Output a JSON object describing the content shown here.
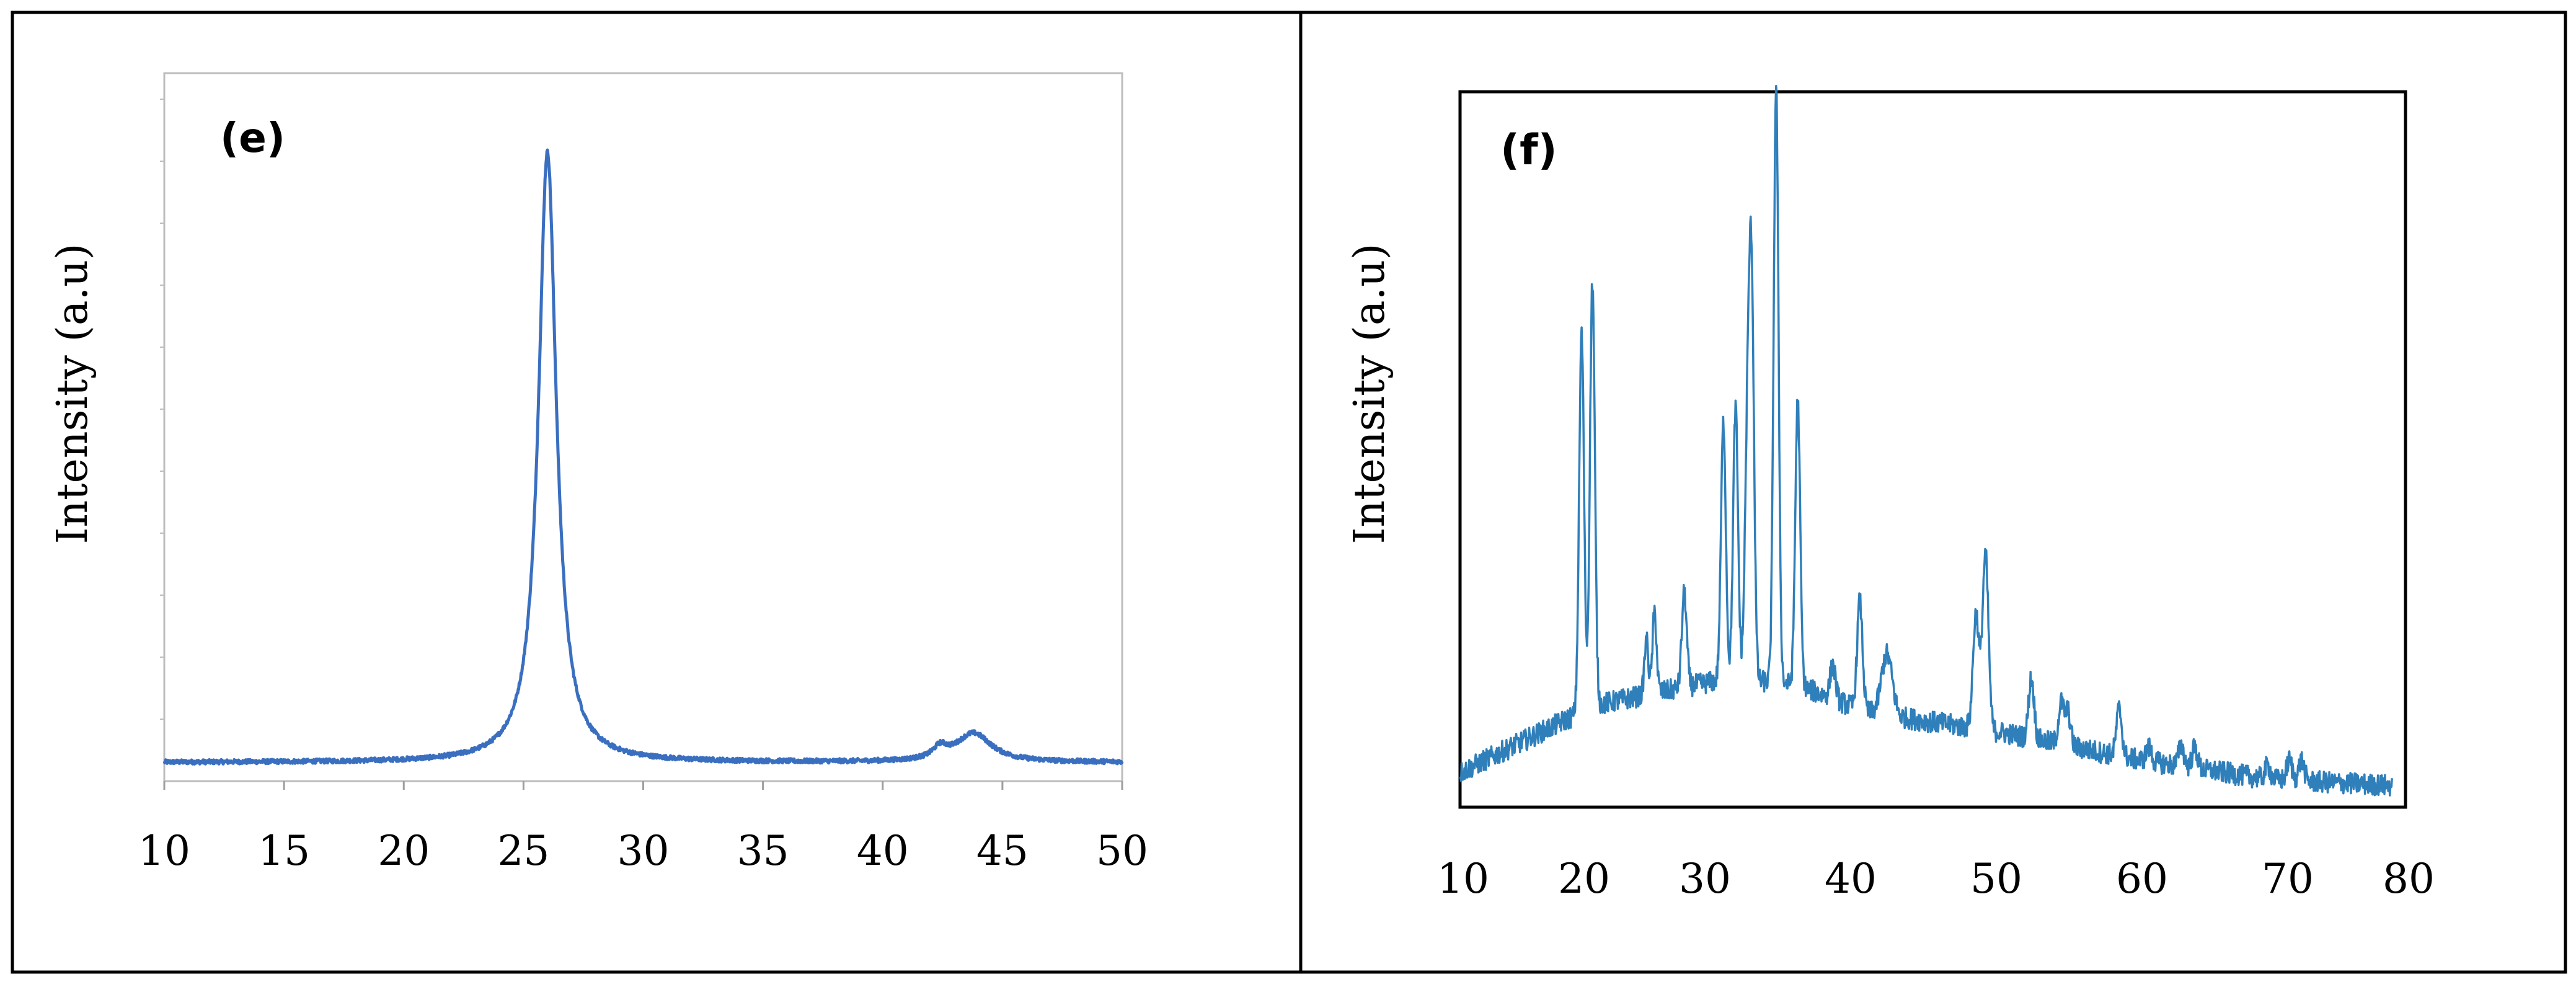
{
  "chart_data": [
    {
      "type": "line",
      "panel_label": "(e)",
      "title": "",
      "xlabel": "",
      "ylabel": "Intensity (a.u)",
      "xlim": [
        10,
        50
      ],
      "ylim": [
        0,
        100
      ],
      "x_ticks": [
        10,
        15,
        20,
        25,
        30,
        35,
        40,
        45,
        50
      ],
      "x_tick_labels": [
        "10",
        "15",
        "20",
        "25",
        "30",
        "35",
        "40",
        "45",
        "50"
      ],
      "color": "#3a6fc0",
      "baseline": 1.5,
      "noise": 0.35,
      "peaks": [
        {
          "x": 26.0,
          "height": 98,
          "width": 0.45,
          "shape": "lorentz"
        },
        {
          "x": 42.4,
          "height": 1.8,
          "width": 0.35,
          "shape": "lorentz"
        },
        {
          "x": 43.8,
          "height": 4.6,
          "width": 0.9,
          "shape": "lorentz"
        }
      ]
    },
    {
      "type": "line",
      "panel_label": "(f)",
      "title": "",
      "xlabel": "",
      "ylabel": "Intensity (a.u)",
      "xlim": [
        10,
        80
      ],
      "ylim": [
        0,
        100
      ],
      "x_ticks": [
        10,
        20,
        30,
        40,
        50,
        60,
        70,
        80
      ],
      "x_tick_labels": [
        "10",
        "20",
        "30",
        "40",
        "50",
        "60",
        "70",
        "80"
      ],
      "color": "#2f7fba",
      "noise": 1.6,
      "background": [
        [
          10,
          4
        ],
        [
          20,
          14
        ],
        [
          30,
          18
        ],
        [
          35,
          17
        ],
        [
          40,
          13
        ],
        [
          50,
          10
        ],
        [
          60,
          6
        ],
        [
          70,
          3
        ],
        [
          80,
          2
        ]
      ],
      "peaks": [
        {
          "x": 19.0,
          "height": 56,
          "width": 0.18
        },
        {
          "x": 19.8,
          "height": 63,
          "width": 0.18
        },
        {
          "x": 23.8,
          "height": 8,
          "width": 0.15
        },
        {
          "x": 24.4,
          "height": 12,
          "width": 0.15
        },
        {
          "x": 26.6,
          "height": 14,
          "width": 0.18
        },
        {
          "x": 29.5,
          "height": 38,
          "width": 0.18
        },
        {
          "x": 30.4,
          "height": 40,
          "width": 0.18
        },
        {
          "x": 31.3,
          "height": 37,
          "width": 0.2
        },
        {
          "x": 31.6,
          "height": 52,
          "width": 0.18
        },
        {
          "x": 33.4,
          "height": 88,
          "width": 0.18
        },
        {
          "x": 35.0,
          "height": 42,
          "width": 0.18
        },
        {
          "x": 37.6,
          "height": 5,
          "width": 0.2
        },
        {
          "x": 39.6,
          "height": 16,
          "width": 0.2
        },
        {
          "x": 41.6,
          "height": 9,
          "width": 0.4
        },
        {
          "x": 48.2,
          "height": 17,
          "width": 0.22
        },
        {
          "x": 48.9,
          "height": 26,
          "width": 0.22
        },
        {
          "x": 52.3,
          "height": 9,
          "width": 0.2
        },
        {
          "x": 54.5,
          "height": 6,
          "width": 0.2
        },
        {
          "x": 55.0,
          "height": 5,
          "width": 0.2
        },
        {
          "x": 58.8,
          "height": 7,
          "width": 0.2
        },
        {
          "x": 61.0,
          "height": 2,
          "width": 0.2
        },
        {
          "x": 63.4,
          "height": 3,
          "width": 0.2
        },
        {
          "x": 64.4,
          "height": 3,
          "width": 0.2
        },
        {
          "x": 69.8,
          "height": 2,
          "width": 0.2
        },
        {
          "x": 71.4,
          "height": 3,
          "width": 0.2
        },
        {
          "x": 72.3,
          "height": 3,
          "width": 0.2
        }
      ]
    }
  ]
}
